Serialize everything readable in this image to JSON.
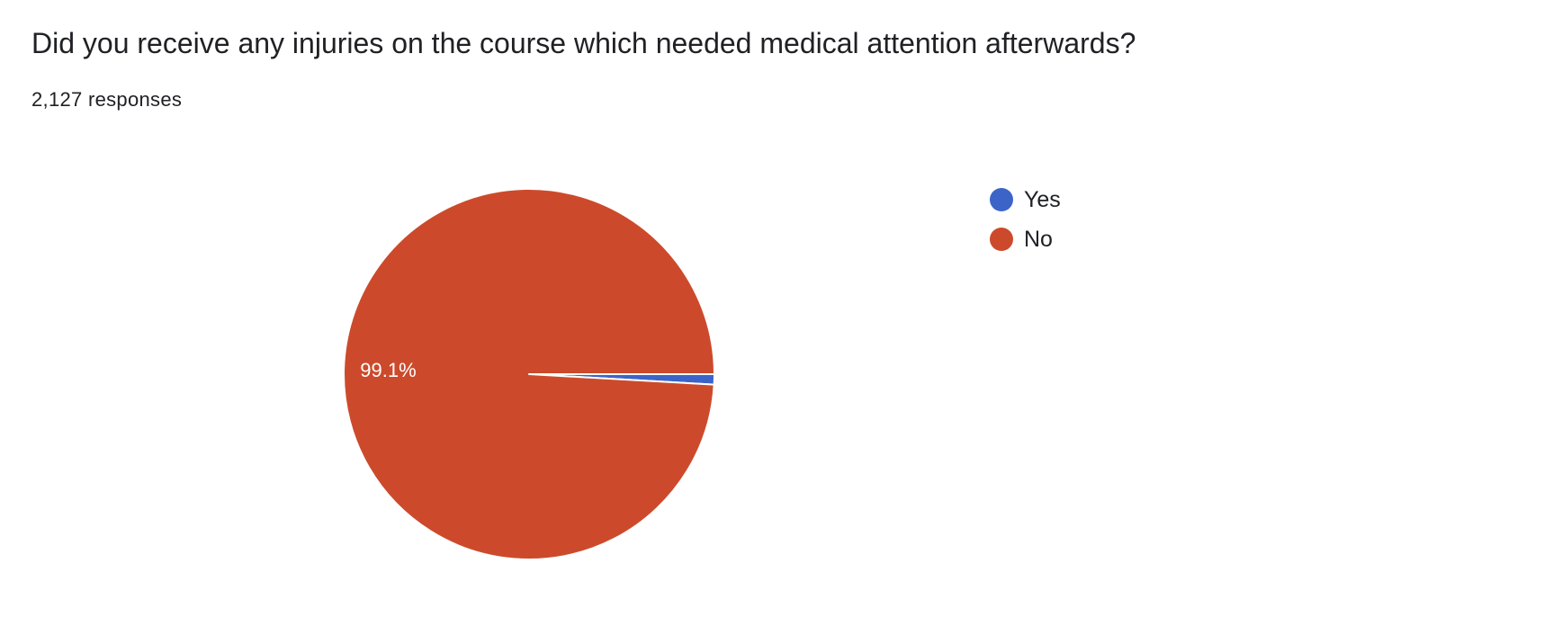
{
  "header": {
    "question": "Did you receive any injuries on the course which needed medical attention afterwards?",
    "responses": "2,127 responses"
  },
  "chart_data": {
    "type": "pie",
    "title": "Did you receive any injuries on the course which needed medical attention afterwards?",
    "slices": [
      {
        "name": "Yes",
        "value": 0.9,
        "color": "#3c64c8",
        "label": ""
      },
      {
        "name": "No",
        "value": 99.1,
        "color": "#cc4a2b",
        "label": "99.1%"
      }
    ],
    "legend_position": "right",
    "start_angle_deg": 0,
    "direction": "clockwise"
  }
}
